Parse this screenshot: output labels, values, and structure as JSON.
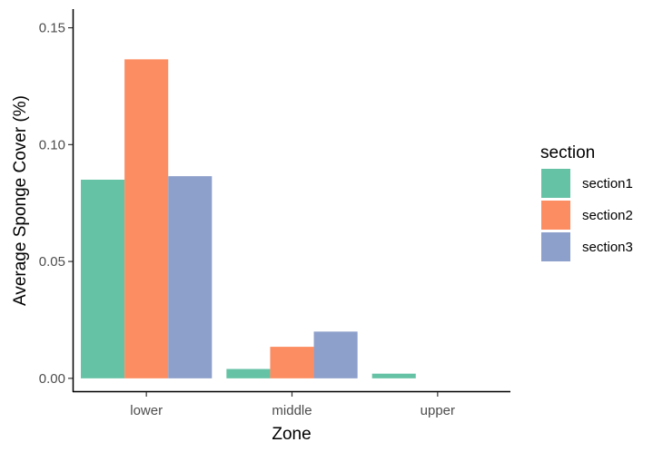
{
  "chart_data": {
    "type": "bar",
    "xlabel": "Zone",
    "ylabel": "Average Sponge Cover (%)",
    "categories": [
      "lower",
      "middle",
      "upper"
    ],
    "series": [
      {
        "name": "section1",
        "color": "#66C2A5",
        "values": [
          0.085,
          0.004,
          0.002
        ]
      },
      {
        "name": "section2",
        "color": "#FC8D62",
        "values": [
          0.1365,
          0.0135,
          null
        ]
      },
      {
        "name": "section3",
        "color": "#8DA0CB",
        "values": [
          0.0865,
          0.02,
          null
        ]
      }
    ],
    "ylim": [
      -0.0055,
      0.158
    ],
    "yticks": [
      0.0,
      0.05,
      0.1,
      0.15
    ],
    "ytick_labels": [
      "0.00",
      "0.05",
      "0.10",
      "0.15"
    ],
    "grid": false,
    "legend": {
      "title": "section",
      "position": "right"
    }
  }
}
